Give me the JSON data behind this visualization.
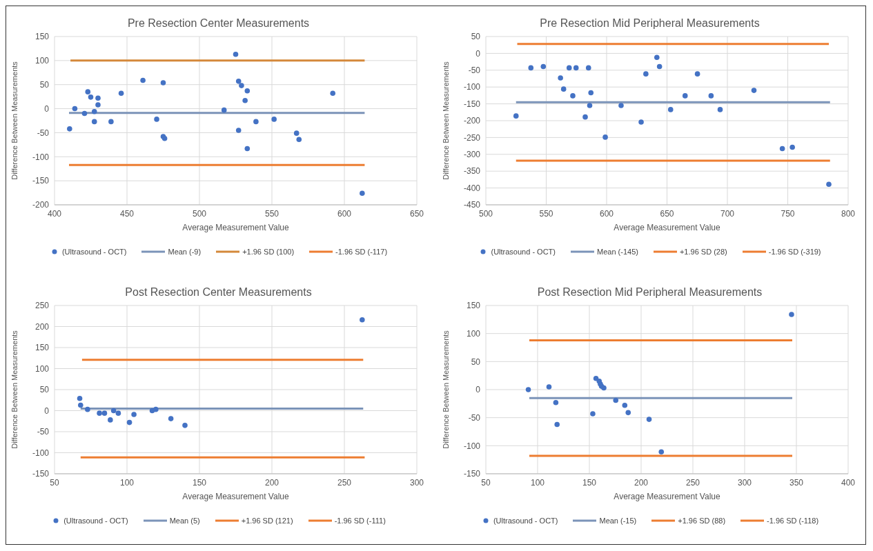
{
  "chart_data": [
    {
      "type": "scatter",
      "title": "Pre Resection Center Measurements",
      "xlabel": "Average Measurement Value",
      "ylabel": "Difference  Between Measurements",
      "xlim": [
        400,
        650
      ],
      "xticks": [
        400,
        450,
        500,
        550,
        600,
        650
      ],
      "ylim": [
        -200,
        150
      ],
      "yticks": [
        -200,
        -150,
        -100,
        -50,
        0,
        50,
        100,
        150
      ],
      "grid": true,
      "legend": "bottom",
      "series": [
        {
          "name": "(Ultrasound - OCT)",
          "marker": "circle",
          "color": "#4472c4",
          "x": [
            410.4,
            414,
            420.7,
            423,
            425,
            427.5,
            427.5,
            430,
            430,
            439,
            446,
            461,
            470.5,
            475,
            475,
            476,
            517,
            525,
            527,
            529,
            527,
            531.5,
            533,
            533,
            539,
            551.5,
            567,
            568.7,
            592,
            612.3
          ],
          "values": [
            -42,
            0,
            -10,
            35,
            24,
            -6,
            -27,
            22,
            8,
            -27,
            32,
            59,
            -22,
            54,
            -58,
            -62,
            -3,
            113,
            57,
            48,
            -45,
            17,
            37,
            -83,
            -27,
            -22,
            -51,
            -64,
            32,
            -176
          ]
        },
        {
          "name": "Mean (-9)",
          "type": "line",
          "marker": "none",
          "color": "#7b93b8",
          "x": [
            410,
            614
          ],
          "values": [
            -9,
            -9
          ]
        },
        {
          "name": "+1.96 SD (100)",
          "type": "line",
          "marker": "none",
          "color": "#d4883a",
          "x": [
            411,
            614
          ],
          "values": [
            100,
            100
          ]
        },
        {
          "name": "-1.96 SD (-117)",
          "type": "line",
          "marker": "none",
          "color": "#ed7d31",
          "x": [
            410,
            614
          ],
          "values": [
            -117,
            -117
          ]
        }
      ]
    },
    {
      "type": "scatter",
      "title": "Pre Resection Mid Peripheral Measurements",
      "xlabel": "Average Measurement Value",
      "ylabel": "Difference  Between Measurements",
      "xlim": [
        500,
        800
      ],
      "xticks": [
        500,
        550,
        600,
        650,
        700,
        750,
        800
      ],
      "ylim": [
        -450,
        50
      ],
      "yticks": [
        -450,
        -400,
        -350,
        -300,
        -250,
        -200,
        -150,
        -100,
        -50,
        0,
        50
      ],
      "grid": true,
      "legend": "bottom",
      "series": [
        {
          "name": "(Ultrasound - OCT)",
          "marker": "circle",
          "color": "#4472c4",
          "x": [
            525,
            537.3,
            547.6,
            561.8,
            564.4,
            569,
            572,
            574.7,
            582.3,
            585,
            586,
            587,
            598.9,
            612,
            628.6,
            632.5,
            641.6,
            643.8,
            653,
            665,
            675.2,
            686.5,
            694,
            722,
            745.5,
            753.8,
            784
          ],
          "values": [
            -186,
            -43,
            -39,
            -73,
            -106,
            -43,
            -126,
            -43,
            -189,
            -43,
            -155,
            -117,
            -249,
            -155,
            -204,
            -61,
            -12,
            -39,
            -167,
            -126,
            -61,
            -126,
            -167,
            -110,
            -283,
            -279,
            -389
          ]
        },
        {
          "name": "Mean (-145)",
          "type": "line",
          "marker": "none",
          "color": "#7b93b8",
          "x": [
            525,
            785
          ],
          "values": [
            -145,
            -145
          ]
        },
        {
          "name": "+1.96 SD (28)",
          "type": "line",
          "marker": "none",
          "color": "#ed7d31",
          "x": [
            526,
            784
          ],
          "values": [
            28,
            28
          ]
        },
        {
          "name": "-1.96 SD (-319)",
          "type": "line",
          "marker": "none",
          "color": "#ed7d31",
          "x": [
            525,
            785
          ],
          "values": [
            -319,
            -319
          ]
        }
      ]
    },
    {
      "type": "scatter",
      "title": "Post Resection Center Measurements",
      "xlabel": "Average Measurement Value",
      "ylabel": "Difference  Between Measurements",
      "xlim": [
        50,
        300
      ],
      "xticks": [
        50,
        100,
        150,
        200,
        250,
        300
      ],
      "ylim": [
        -150,
        250
      ],
      "yticks": [
        -150,
        -100,
        -50,
        0,
        50,
        100,
        150,
        200,
        250
      ],
      "grid": true,
      "legend": "bottom",
      "series": [
        {
          "name": "(Ultrasound - OCT)",
          "marker": "circle",
          "color": "#4472c4",
          "x": [
            67.4,
            68,
            72.8,
            81,
            84.5,
            88.5,
            90.8,
            94,
            101.7,
            104.8,
            117.4,
            119.9,
            130.3,
            140,
            262.3
          ],
          "values": [
            29,
            13,
            3,
            -6,
            -6,
            -22,
            0,
            -6,
            -28,
            -9,
            0,
            3,
            -19,
            -35,
            216
          ]
        },
        {
          "name": "Mean (5)",
          "type": "line",
          "marker": "none",
          "color": "#7b93b8",
          "x": [
            68,
            263
          ],
          "values": [
            5,
            5
          ]
        },
        {
          "name": "+1.96 SD (121)",
          "type": "line",
          "marker": "none",
          "color": "#ed7d31",
          "x": [
            69,
            263
          ],
          "values": [
            121,
            121
          ]
        },
        {
          "name": "-1.96 SD (-111)",
          "type": "line",
          "marker": "none",
          "color": "#ed7d31",
          "x": [
            68,
            264
          ],
          "values": [
            -111,
            -111
          ]
        }
      ]
    },
    {
      "type": "scatter",
      "title": "Post Resection Mid Peripheral Measurements",
      "xlabel": "Average Measurement Value",
      "ylabel": "Difference  Between Measurements",
      "xlim": [
        50,
        400
      ],
      "xticks": [
        50,
        100,
        150,
        200,
        250,
        300,
        350,
        400
      ],
      "ylim": [
        -150,
        150
      ],
      "yticks": [
        -150,
        -100,
        -50,
        0,
        50,
        100,
        150
      ],
      "grid": true,
      "legend": "bottom",
      "series": [
        {
          "name": "(Ultrasound - OCT)",
          "marker": "circle",
          "color": "#4472c4",
          "x": [
            91,
            111,
            117.6,
            118.8,
            153.3,
            156.4,
            159.5,
            160.6,
            161.7,
            164,
            175.5,
            184.2,
            187.5,
            207.7,
            219.5,
            345.3
          ],
          "values": [
            0,
            5,
            -23,
            -62,
            -43,
            20,
            15,
            10,
            6,
            3,
            -19,
            -28,
            -41,
            -53,
            -111,
            134
          ]
        },
        {
          "name": "Mean (-15)",
          "type": "line",
          "marker": "none",
          "color": "#7b93b8",
          "x": [
            92,
            346
          ],
          "values": [
            -15,
            -15
          ]
        },
        {
          "name": "+1.96 SD (88)",
          "type": "line",
          "marker": "none",
          "color": "#ed7d31",
          "x": [
            92,
            346
          ],
          "values": [
            88,
            88
          ]
        },
        {
          "name": "-1.96 SD (-118)",
          "type": "line",
          "marker": "none",
          "color": "#ed7d31",
          "x": [
            92,
            346
          ],
          "values": [
            -118,
            -118
          ]
        }
      ]
    }
  ]
}
